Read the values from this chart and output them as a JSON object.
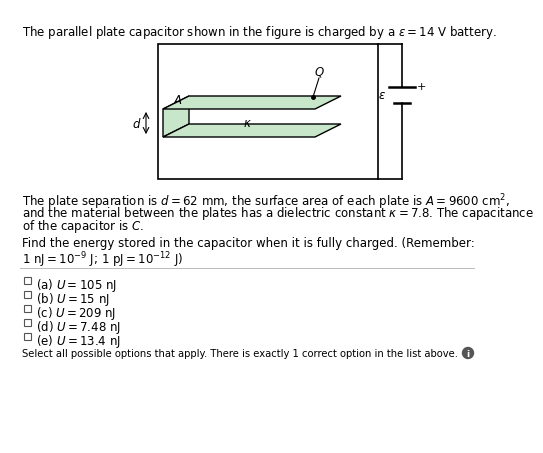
{
  "bg_color": "#ffffff",
  "text_color": "#000000",
  "diagram_plate_fill": "#c8e6c9",
  "diagram_plate_edge": "#000000",
  "title": "The parallel plate capacitor shown in the figure is charged by a $\\varepsilon = 14$ V battery.",
  "prob1": "The plate separation is $d = 62$ mm, the surface area of each plate is $A = 9600$ cm$^2$,",
  "prob2": "and the material between the plates has a dielectric constant $\\kappa = 7.8$. The capacitance",
  "prob3": "of the capacitor is $C$.",
  "find1": "Find the energy stored in the capacitor when it is fully charged. (Remember:",
  "find2": "$1\\ \\mathrm{nJ} = 10^{-9}\\ \\mathrm{J}$; $1\\ \\mathrm{pJ} = 10^{-12}\\ \\mathrm{J}$)",
  "options": [
    "(a) $U = 105$ nJ",
    "(b) $U = 15$ nJ",
    "(c) $U = 209$ nJ",
    "(d) $U = 7.48$ nJ",
    "(e) $U = 13.4$ nJ"
  ],
  "footer": "Select all possible options that apply. There is exactly 1 correct option in the list above.",
  "fs_main": 8.5,
  "fs_title": 8.5
}
